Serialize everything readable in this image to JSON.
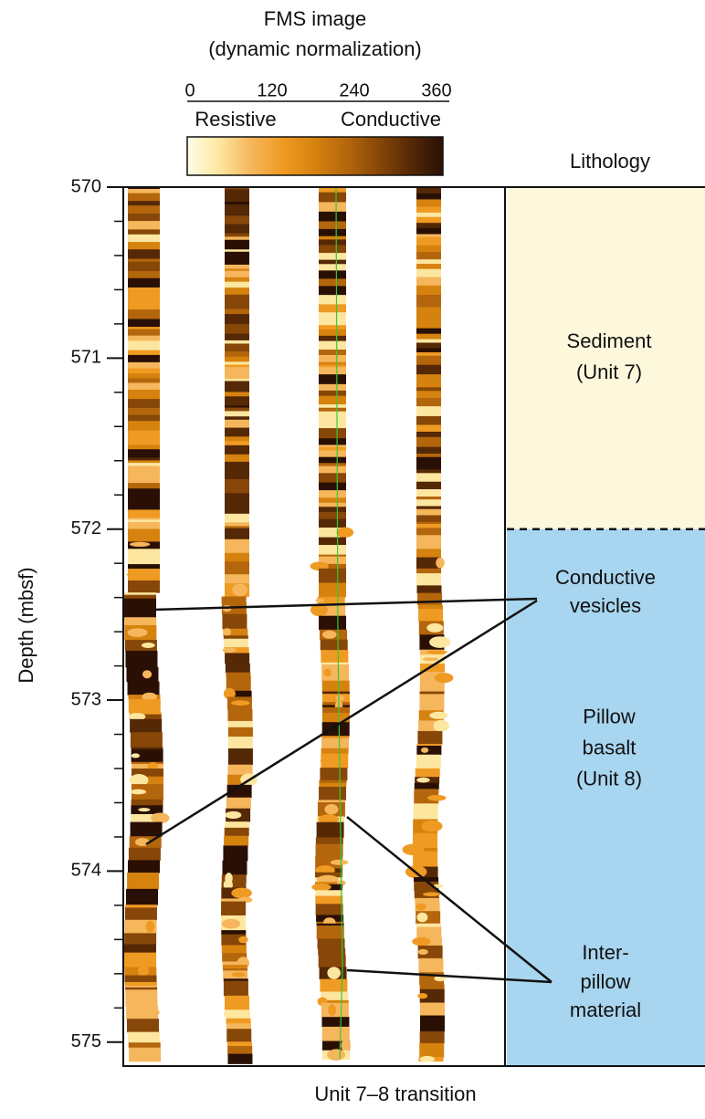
{
  "colorbar": {
    "title": "FMS image",
    "subtitle": "(dynamic normalization)",
    "ticks": [
      0,
      120,
      240,
      360
    ],
    "low_label": "Resistive",
    "high_label": "Conductive",
    "colors": [
      "#fffdea",
      "#fde7a0",
      "#f5b65c",
      "#ef9a22",
      "#d6820f",
      "#b4660c",
      "#874708",
      "#552806",
      "#2a1004"
    ]
  },
  "depth_axis": {
    "label": "Depth (mbsf)",
    "lim": [
      570,
      575.14
    ],
    "ticks": [
      570,
      571,
      572,
      573,
      574,
      575
    ],
    "minor_step": 0.2
  },
  "lithology": {
    "title": "Lithology",
    "units": [
      {
        "label_lines": [
          "Sediment",
          "(Unit 7)"
        ],
        "top": 570,
        "bottom": 572,
        "color": "#fdf8dc"
      },
      {
        "label_lines": [
          "Pillow",
          "basalt",
          "(Unit 8)"
        ],
        "top": 572,
        "bottom": 575.14,
        "color": "#a8d5ef"
      }
    ]
  },
  "annotations": [
    {
      "label_lines": [
        "Conductive",
        "vesicles"
      ]
    },
    {
      "label_lines": [
        "Inter-",
        "pillow",
        "material"
      ]
    }
  ],
  "caption": "Unit 7–8 transition"
}
